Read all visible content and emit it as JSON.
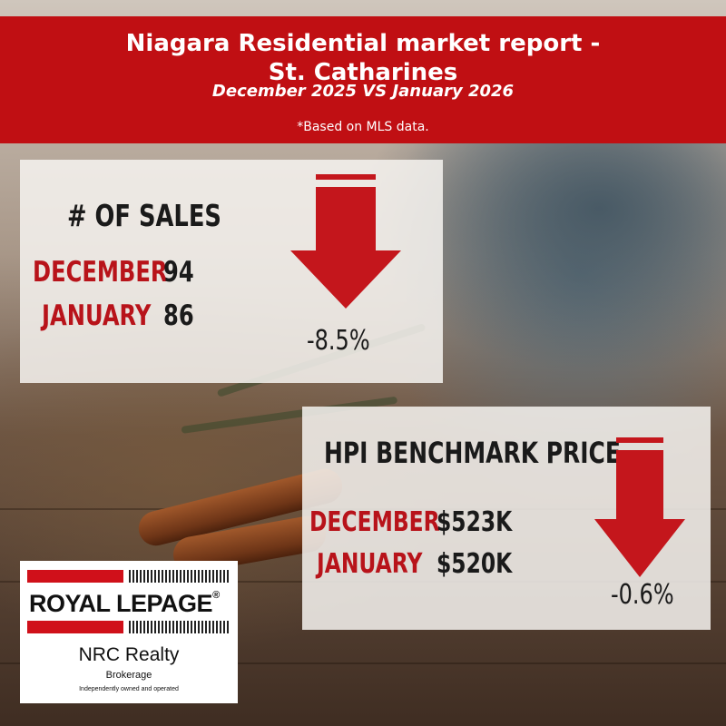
{
  "header": {
    "title_line1": "Niagara Residential market report -",
    "title_line2": "St. Catharines",
    "subtitle": "December 2025 VS January 2026",
    "note": "*Based on MLS data."
  },
  "sales": {
    "heading": "# OF SALES",
    "rows": [
      {
        "label": "DECEMBER",
        "value": "94"
      },
      {
        "label": "JANUARY",
        "value": "86"
      }
    ],
    "change": "-8.5%",
    "direction": "down"
  },
  "hpi": {
    "heading": "HPI BENCHMARK PRICE",
    "rows": [
      {
        "label": "DECEMBER",
        "value": "$523K"
      },
      {
        "label": "JANUARY",
        "value": "$520K"
      }
    ],
    "change": "-0.6%",
    "direction": "down"
  },
  "logo": {
    "brand": "ROYAL LEPAGE",
    "registered": "®",
    "office": "NRC Realty",
    "type": "Brokerage",
    "tagline": "Independently owned and operated"
  },
  "colors": {
    "accent_red": "#c00f13",
    "arrow_red": "#c4161c",
    "panel": "#f6f3f0"
  }
}
